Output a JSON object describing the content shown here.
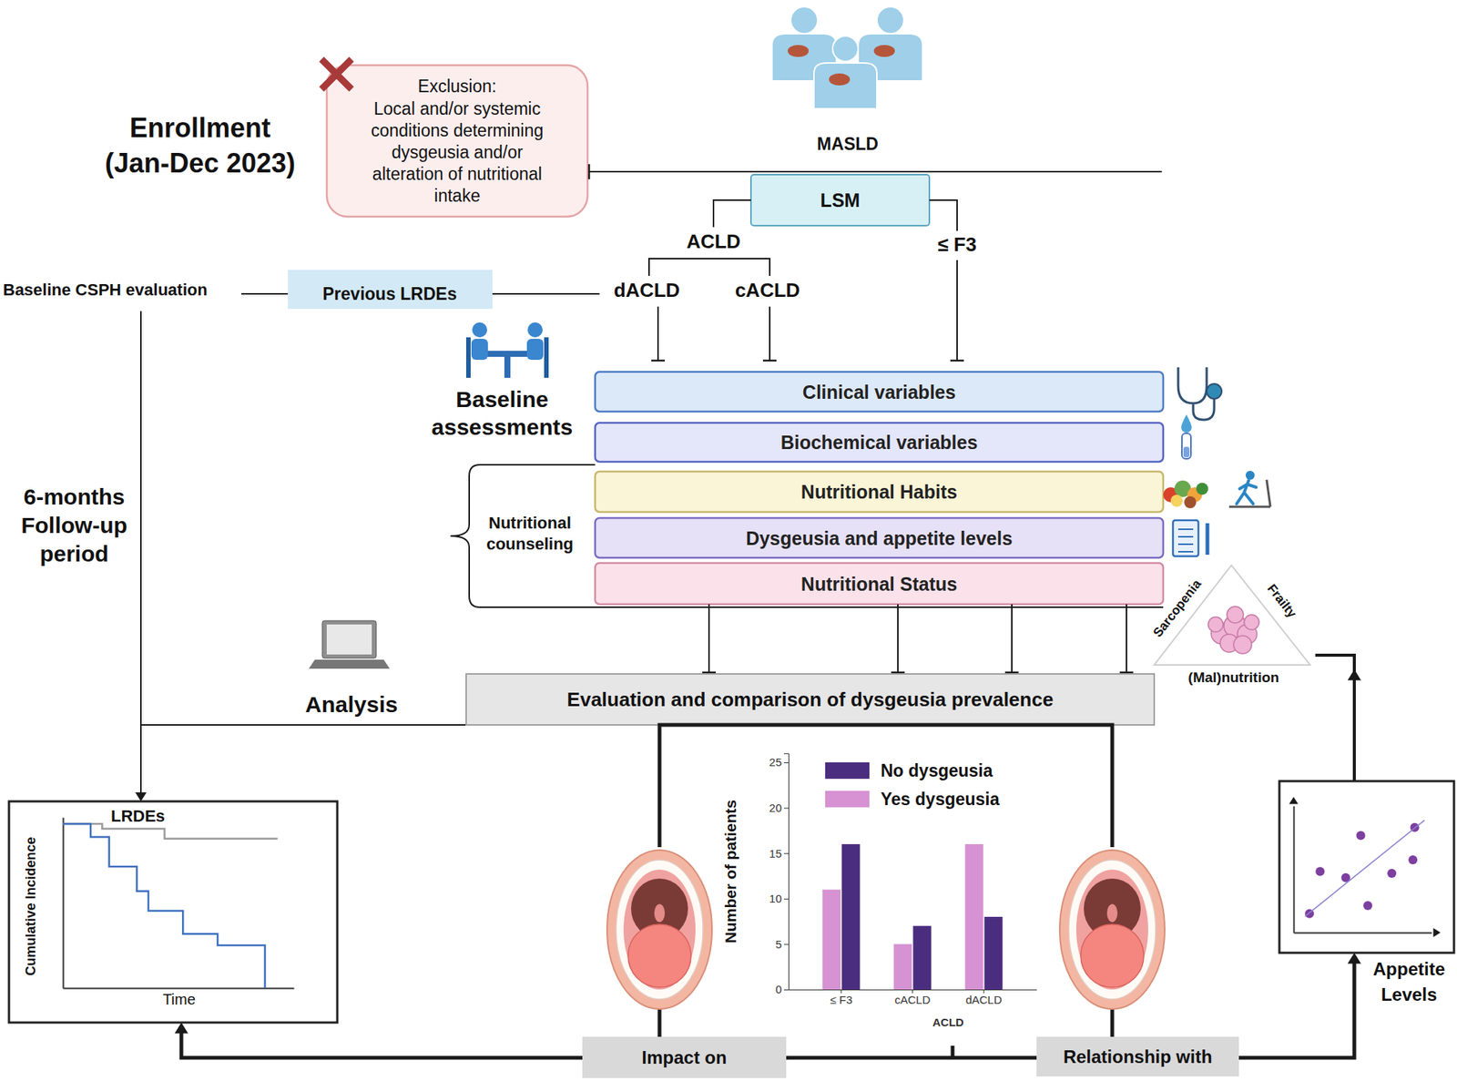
{
  "enrollment": {
    "title": "Enrollment",
    "period": "(Jan-Dec 2023)"
  },
  "exclusion": {
    "title": "Exclusion:",
    "lines": [
      "Local and/or systemic",
      "conditions determining",
      "dysgeusia and/or",
      "alteration of nutritional",
      "intake"
    ]
  },
  "nodes": {
    "masld": "MASLD",
    "lsm": "LSM",
    "acld": "ACLD",
    "f3": "≤ F3",
    "dacld": "dACLD",
    "cacld": "cACLD",
    "previous_lrdes": "Previous LRDEs",
    "baseline_csph": "Baseline CSPH evaluation"
  },
  "follow_up": [
    "6-months",
    "Follow-up",
    "period"
  ],
  "baseline_assessments": [
    "Baseline",
    "assessments"
  ],
  "nutritional_counseling": [
    "Nutritional",
    "counseling"
  ],
  "assessments": [
    "Clinical variables",
    "Biochemical variables",
    "Nutritional Habits",
    "Dysgeusia and appetite levels",
    "Nutritional Status"
  ],
  "triangle": {
    "left": "Sarcopenia",
    "right": "Frailty",
    "bottom": "(Mal)nutrition"
  },
  "analysis": {
    "label": "Analysis",
    "box": "Evaluation and comparison of dysgeusia prevalence"
  },
  "outcomes": {
    "impact": "Impact on",
    "relationship": "Relationship with",
    "appetite": [
      "Appetite",
      "Levels"
    ]
  },
  "chart_data": [
    {
      "type": "bar",
      "categories": [
        "≤ F3",
        "cACLD",
        "dACLD"
      ],
      "series": [
        {
          "name": "No dysgeusia",
          "color": "#4b2d7f",
          "values": [
            16,
            7,
            8
          ]
        },
        {
          "name": "Yes dysgeusia",
          "color": "#d692d2",
          "values": [
            11,
            5,
            16
          ]
        }
      ],
      "x_label": "ACLD",
      "y_label": "Number of patients",
      "ylim": [
        0,
        26
      ],
      "yticks": [
        0,
        5,
        10,
        15,
        20,
        25
      ],
      "legend": "upper left"
    },
    {
      "type": "line",
      "title": "LRDEs",
      "x_label": "Time",
      "y_label": "Cumulative Incidence",
      "series": [
        {
          "color": "#9a9a9a",
          "line_style": "step",
          "x": [
            0,
            1.7,
            4.4,
            9.3
          ],
          "values": [
            1,
            0.97,
            0.91,
            0.91
          ]
        },
        {
          "color": "#3d6fc0",
          "line_style": "step",
          "x": [
            0,
            1.2,
            2.0,
            3.2,
            3.7,
            5.2,
            6.7,
            8.75
          ],
          "values": [
            1,
            0.92,
            0.74,
            0.59,
            0.47,
            0.33,
            0.26,
            0
          ]
        }
      ],
      "xlim": [
        0,
        10
      ],
      "ylim": [
        0,
        1.04
      ],
      "tick_labels": false
    },
    {
      "type": "scatter",
      "series": [
        {
          "type": "scatter",
          "marker": "circle",
          "color": "#7d3f9f",
          "x": [
            1.15,
            1.92,
            3.78,
            4.87,
            5.38,
            7.12,
            8.65,
            8.78
          ],
          "values": [
            1.49,
            4.82,
            4.33,
            7.66,
            2.13,
            4.68,
            5.74,
            8.3
          ]
        },
        {
          "type": "line",
          "color": "#8a80d0",
          "x": [
            0.83,
            9.49
          ],
          "values": [
            1.28,
            8.87
          ]
        }
      ],
      "xlim": [
        0,
        10
      ],
      "ylim": [
        0,
        10
      ],
      "tick_labels": false
    }
  ]
}
